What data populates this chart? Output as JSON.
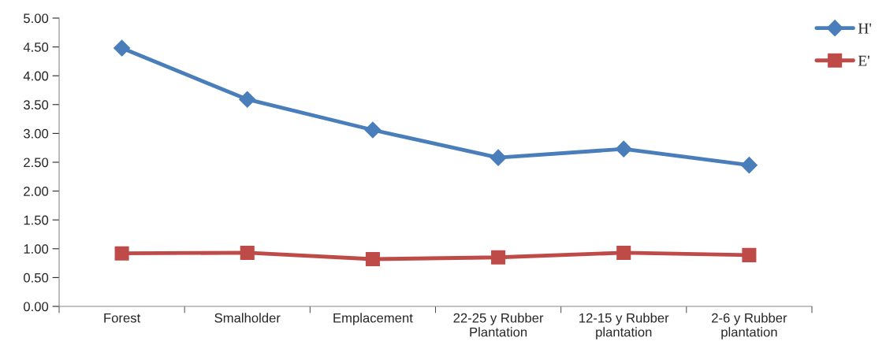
{
  "chart_data": {
    "type": "line",
    "categories": [
      "Forest",
      "Smalholder",
      "Emplacement",
      "22-25 y Rubber\nPlantation",
      "12-15 y Rubber\nplantation",
      "2-6 y Rubber\nplantation"
    ],
    "series": [
      {
        "name": "H'",
        "color": "#4a7ebb",
        "marker": "diamond",
        "values": [
          4.48,
          3.59,
          3.06,
          2.58,
          2.73,
          2.45
        ]
      },
      {
        "name": "E'",
        "color": "#be4b48",
        "marker": "square",
        "values": [
          0.92,
          0.93,
          0.82,
          0.85,
          0.93,
          0.89
        ]
      }
    ],
    "ylim": [
      0,
      5
    ],
    "yticks": [
      {
        "value": 0,
        "label": "0.00"
      },
      {
        "value": 0.5,
        "label": "0.50"
      },
      {
        "value": 1,
        "label": "1.00"
      },
      {
        "value": 1.5,
        "label": "1.50"
      },
      {
        "value": 2,
        "label": "2.00"
      },
      {
        "value": 2.5,
        "label": "2.50"
      },
      {
        "value": 3,
        "label": "3.00"
      },
      {
        "value": 3.5,
        "label": "3.50"
      },
      {
        "value": 4,
        "label": "4.00"
      },
      {
        "value": 4.5,
        "label": "4.50"
      },
      {
        "value": 5,
        "label": "5.00"
      }
    ],
    "grid": false,
    "legend": "top right",
    "line_style": "solid"
  }
}
